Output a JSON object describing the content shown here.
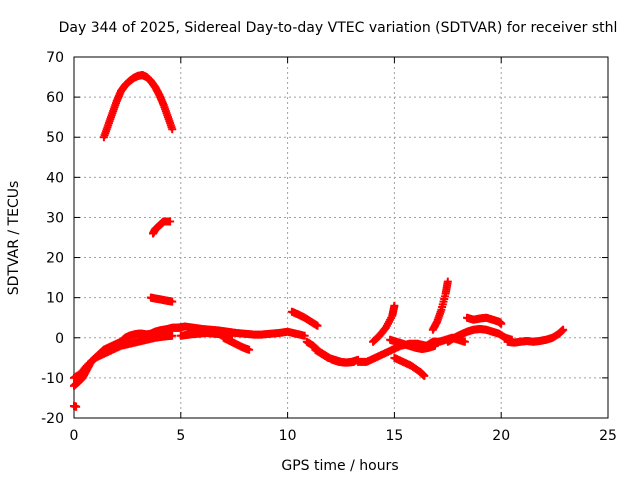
{
  "chart_data": {
    "type": "scatter",
    "title": "Day 344 of 2025, Sidereal Day-to-day VTEC variation (SDTVAR) for receiver sthl",
    "xlabel": "GPS time / hours",
    "ylabel": "SDTVAR / TECUs",
    "xlim": [
      0,
      25
    ],
    "ylim": [
      -20,
      70
    ],
    "xticks": [
      0,
      5,
      10,
      15,
      20,
      25
    ],
    "yticks": [
      -20,
      -10,
      0,
      10,
      20,
      30,
      40,
      50,
      60,
      70
    ],
    "grid": true,
    "marker": "+",
    "color": "#ff0000",
    "series": [
      {
        "name": "arc-high",
        "x": [
          1.4,
          1.6,
          1.8,
          2.0,
          2.2,
          2.4,
          2.6,
          2.8,
          3.0,
          3.2,
          3.4,
          3.6,
          3.8,
          4.0,
          4.2,
          4.4,
          4.6
        ],
        "y": [
          50,
          53,
          56,
          59,
          61.5,
          63,
          64,
          64.8,
          65.3,
          65.5,
          65,
          64,
          62.5,
          60.5,
          58,
          55,
          52
        ]
      },
      {
        "name": "arc-29",
        "x": [
          3.7,
          3.8,
          3.9,
          4.0,
          4.1,
          4.2,
          4.3,
          4.4,
          4.5
        ],
        "y": [
          26,
          27,
          27.5,
          28,
          28.5,
          29,
          29,
          29,
          29
        ]
      },
      {
        "name": "arc-10",
        "x": [
          3.6,
          3.8,
          4.0,
          4.2,
          4.4,
          4.6
        ],
        "y": [
          10,
          9.8,
          9.6,
          9.4,
          9.2,
          9
        ]
      },
      {
        "name": "arc-base-left",
        "x": [
          0,
          0.2,
          0.4,
          0.6,
          0.8,
          1.0,
          1.2,
          1.4,
          1.6,
          1.8,
          2.0,
          2.2,
          2.4,
          2.6,
          2.8,
          3.0,
          3.2,
          3.4,
          3.6,
          3.8,
          4.0,
          4.2,
          4.4,
          4.6,
          4.8,
          5.0
        ],
        "y": [
          -12,
          -11,
          -10,
          -8,
          -6,
          -5,
          -4,
          -3,
          -2.5,
          -2,
          -1.5,
          -1,
          0,
          0.5,
          0.8,
          1,
          1,
          0.8,
          1,
          1.5,
          1.8,
          2,
          2.2,
          2.5,
          2.5,
          2.5
        ]
      },
      {
        "name": "arc-base-lower",
        "x": [
          0,
          0.3,
          0.6,
          1.0,
          1.4,
          1.8,
          2.2,
          2.6,
          3.0,
          3.4,
          3.8,
          4.2,
          4.6
        ],
        "y": [
          -10,
          -9,
          -7,
          -5,
          -4,
          -3,
          -2,
          -1.5,
          -1,
          -0.5,
          0,
          0.3,
          0.5
        ]
      },
      {
        "name": "point-low",
        "x": [
          0,
          0.1
        ],
        "y": [
          -17,
          -17.2
        ]
      },
      {
        "name": "arc-mid-1",
        "x": [
          4.8,
          5.2,
          5.6,
          6.0,
          6.4,
          6.8,
          7.2,
          7.6,
          8.0,
          8.4,
          8.8,
          9.2,
          9.6,
          10.0,
          10.4,
          10.8
        ],
        "y": [
          2.5,
          2.8,
          2.5,
          2.2,
          2,
          1.8,
          1.5,
          1.2,
          1,
          0.8,
          0.8,
          1,
          1.2,
          1.5,
          1,
          0.5
        ]
      },
      {
        "name": "arc-mid-2",
        "x": [
          5.0,
          5.4,
          5.8,
          6.2,
          6.6,
          7.0,
          7.4
        ],
        "y": [
          0.5,
          0.8,
          1,
          1.2,
          1,
          0.8,
          0.5
        ]
      },
      {
        "name": "arc-mid-3",
        "x": [
          7.0,
          7.3,
          7.6,
          7.9,
          8.2
        ],
        "y": [
          0,
          -0.8,
          -1.6,
          -2.4,
          -3
        ]
      },
      {
        "name": "arc-mid-4",
        "x": [
          10.2,
          10.5,
          10.8,
          11.1,
          11.4
        ],
        "y": [
          6.5,
          5.8,
          5,
          4,
          3
        ]
      },
      {
        "name": "arc-mid-5",
        "x": [
          10.9,
          11.2,
          11.5,
          11.8,
          12.1,
          12.4,
          12.7,
          13.0,
          13.3
        ],
        "y": [
          -1,
          -2,
          -3.5,
          -4.5,
          -5.5,
          -6,
          -6.2,
          -6,
          -5.5
        ]
      },
      {
        "name": "arc-mid-6",
        "x": [
          11.3,
          11.6,
          11.9,
          12.2,
          12.5,
          12.8,
          13.1
        ],
        "y": [
          -3,
          -4,
          -5,
          -5.5,
          -6,
          -6.2,
          -6
        ]
      },
      {
        "name": "arc-rise-15",
        "x": [
          14.0,
          14.3,
          14.6,
          14.9,
          15.0
        ],
        "y": [
          -1,
          0.5,
          2.5,
          5.5,
          8
        ]
      },
      {
        "name": "arc-15-a",
        "x": [
          13.3,
          13.7,
          14.1,
          14.5,
          14.9,
          15.3,
          15.7,
          16.1,
          16.5
        ],
        "y": [
          -6,
          -6,
          -5,
          -4,
          -3,
          -2,
          -1.5,
          -1.5,
          -2
        ]
      },
      {
        "name": "arc-15-b",
        "x": [
          14.8,
          15.1,
          15.4,
          15.7,
          16.0,
          16.3,
          16.6,
          16.9
        ],
        "y": [
          -0.5,
          -1,
          -1.5,
          -2,
          -2.5,
          -2.8,
          -2.5,
          -2
        ]
      },
      {
        "name": "arc-15-c",
        "x": [
          15.0,
          15.4,
          15.8,
          16.2,
          16.4
        ],
        "y": [
          -5,
          -6,
          -7,
          -8.5,
          -9.5
        ]
      },
      {
        "name": "arc-17-rise",
        "x": [
          16.8,
          17.0,
          17.2,
          17.4,
          17.5
        ],
        "y": [
          2,
          4,
          7,
          11,
          14
        ]
      },
      {
        "name": "arc-17-base",
        "x": [
          16.5,
          16.8,
          17.1,
          17.4,
          17.7,
          18.0,
          18.3
        ],
        "y": [
          -2,
          -1,
          -1,
          -0.5,
          0,
          -0.5,
          -1
        ]
      },
      {
        "name": "arc-18",
        "x": [
          17.5,
          17.8,
          18.1,
          18.4,
          18.7,
          19.0,
          19.3,
          19.6,
          19.9,
          20.2,
          20.5
        ],
        "y": [
          -1,
          0,
          0.8,
          1.5,
          2,
          2.2,
          2,
          1.5,
          1,
          0,
          -0.5
        ]
      },
      {
        "name": "arc-19-top",
        "x": [
          18.4,
          18.7,
          19.0,
          19.3,
          19.6,
          19.9,
          20.0
        ],
        "y": [
          5,
          4.5,
          4.8,
          5,
          4.5,
          4,
          3.5
        ]
      },
      {
        "name": "arc-20-22",
        "x": [
          20.3,
          20.6,
          20.9,
          21.2,
          21.5,
          21.8,
          22.1,
          22.4,
          22.7,
          22.9
        ],
        "y": [
          -1,
          -1.2,
          -1,
          -0.8,
          -1,
          -0.8,
          -0.5,
          0,
          1,
          2
        ]
      }
    ]
  }
}
